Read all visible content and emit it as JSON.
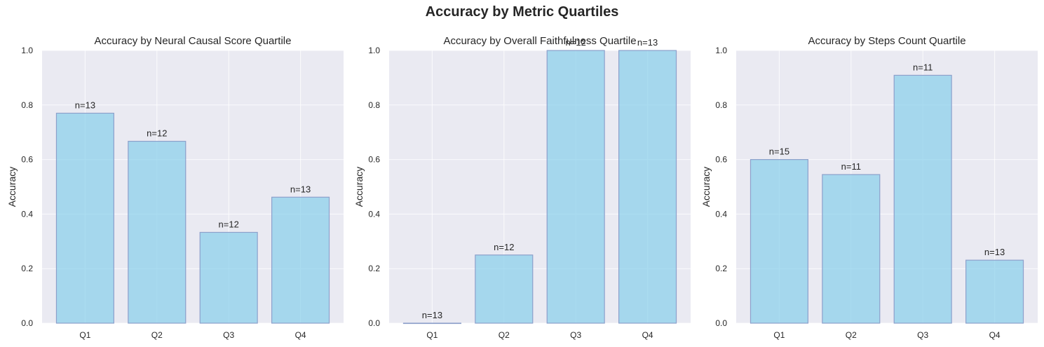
{
  "figure": {
    "title": "Accuracy by Metric Quartiles"
  },
  "style": {
    "panel_bg": "#eaeaf2",
    "grid": "#ffffff",
    "bar_fill": "#87ceeb",
    "bar_edge": "#8da0cb",
    "text": "#262626"
  },
  "chart_data": [
    {
      "type": "bar",
      "title": "Accuracy by Neural Causal Score Quartile",
      "xlabel": "",
      "ylabel": "Accuracy",
      "categories": [
        "Q1",
        "Q2",
        "Q3",
        "Q4"
      ],
      "values": [
        0.77,
        0.667,
        0.333,
        0.462
      ],
      "labels": [
        "n=13",
        "n=12",
        "n=12",
        "n=13"
      ],
      "ylim": [
        0,
        1.0
      ],
      "yticks": [
        "0.0",
        "0.2",
        "0.4",
        "0.6",
        "0.8",
        "1.0"
      ],
      "grid": true
    },
    {
      "type": "bar",
      "title": "Accuracy by Overall Faithfulness Quartile",
      "xlabel": "",
      "ylabel": "Accuracy",
      "categories": [
        "Q1",
        "Q2",
        "Q3",
        "Q4"
      ],
      "values": [
        0.0,
        0.25,
        1.0,
        1.0
      ],
      "labels": [
        "n=13",
        "n=12",
        "n=12",
        "n=13"
      ],
      "ylim": [
        0,
        1.0
      ],
      "yticks": [
        "0.0",
        "0.2",
        "0.4",
        "0.6",
        "0.8",
        "1.0"
      ],
      "grid": true
    },
    {
      "type": "bar",
      "title": "Accuracy by Steps Count Quartile",
      "xlabel": "",
      "ylabel": "Accuracy",
      "categories": [
        "Q1",
        "Q2",
        "Q3",
        "Q4"
      ],
      "values": [
        0.6,
        0.545,
        0.909,
        0.231
      ],
      "labels": [
        "n=15",
        "n=11",
        "n=11",
        "n=13"
      ],
      "ylim": [
        0,
        1.0
      ],
      "yticks": [
        "0.0",
        "0.2",
        "0.4",
        "0.6",
        "0.8",
        "1.0"
      ],
      "grid": true
    }
  ]
}
